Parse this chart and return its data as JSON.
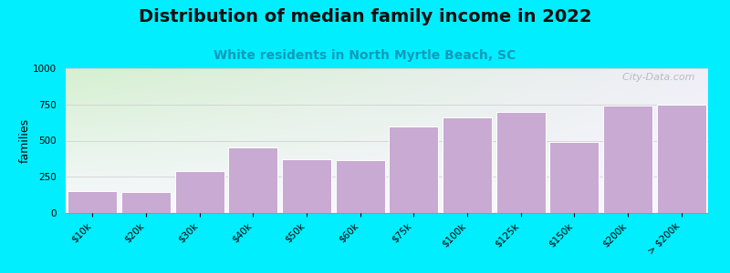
{
  "title": "Distribution of median family income in 2022",
  "subtitle": "White residents in North Myrtle Beach, SC",
  "ylabel": "families",
  "categories": [
    "$10k",
    "$20k",
    "$30k",
    "$40k",
    "$50k",
    "$60k",
    "$75k",
    "$100k",
    "$125k",
    "$150k",
    "$200k",
    "> $200k"
  ],
  "values": [
    150,
    145,
    290,
    450,
    370,
    365,
    600,
    660,
    700,
    490,
    745,
    750
  ],
  "bar_color": "#c8aad2",
  "bar_edge_color": "#ffffff",
  "background_outer": "#00eeff",
  "plot_bg_left_top": "#d5f0d0",
  "plot_bg_right_top": "#f0eef8",
  "plot_bg_bottom": "#f8f8ff",
  "title_fontsize": 14,
  "subtitle_fontsize": 10,
  "subtitle_color": "#1199bb",
  "ylabel_fontsize": 9,
  "tick_fontsize": 7.5,
  "ylim": [
    0,
    1000
  ],
  "yticks": [
    0,
    250,
    500,
    750,
    1000
  ],
  "watermark": "  City-Data.com"
}
